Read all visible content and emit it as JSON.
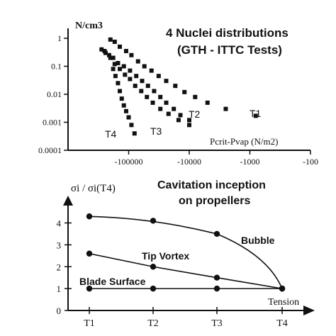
{
  "chart_data": [
    {
      "type": "scatter",
      "title": "4 Nuclei distributions",
      "subtitle": "(GTH - ITTC Tests)",
      "ylabel": "N/cm3",
      "xlabel": "Pcrit-Pvap (N/m2)",
      "x_scale": "log-negative",
      "y_scale": "log",
      "xlim": [
        -1000000,
        -100
      ],
      "ylim": [
        0.0001,
        1
      ],
      "x_ticks": [
        -100000,
        -10000,
        -1000,
        -100
      ],
      "x_tick_labels": [
        "-100000",
        "-10000",
        "-1000",
        "-100"
      ],
      "y_ticks": [
        0.0001,
        0.001,
        0.01,
        0.1,
        1
      ],
      "y_tick_labels": [
        "0.0001",
        "0.001",
        "0.01",
        "0.1",
        "1"
      ],
      "series": [
        {
          "name": "T1",
          "x": [
            -200000,
            -170000,
            -140000,
            -110000,
            -90000,
            -70000,
            -55000,
            -42000,
            -32000,
            -24000,
            -17000,
            -12000,
            -8000,
            -5000,
            -2500,
            -800
          ],
          "y": [
            0.9,
            0.75,
            0.5,
            0.35,
            0.25,
            0.15,
            0.1,
            0.07,
            0.045,
            0.03,
            0.02,
            0.012,
            0.008,
            0.005,
            0.003,
            0.0017
          ]
        },
        {
          "name": "T2",
          "x": [
            -250000,
            -210000,
            -180000,
            -150000,
            -120000,
            -95000,
            -75000,
            -60000,
            -48000,
            -38000,
            -30000,
            -24000,
            -18000,
            -14000,
            -10000
          ],
          "y": [
            0.35,
            0.25,
            0.2,
            0.13,
            0.1,
            0.07,
            0.045,
            0.03,
            0.02,
            0.013,
            0.008,
            0.005,
            0.003,
            0.0018,
            0.0012
          ]
        },
        {
          "name": "T3",
          "x": [
            -280000,
            -240000,
            -200000,
            -170000,
            -140000,
            -115000,
            -95000,
            -78000,
            -62000,
            -50000,
            -40000,
            -30000,
            -22000,
            -15000,
            -10000
          ],
          "y": [
            0.4,
            0.3,
            0.2,
            0.12,
            0.08,
            0.05,
            0.035,
            0.02,
            0.013,
            0.008,
            0.005,
            0.003,
            0.002,
            0.0012,
            0.0008
          ]
        },
        {
          "name": "T4",
          "x": [
            -180000,
            -165000,
            -150000,
            -140000,
            -130000,
            -120000,
            -110000,
            -100000,
            -90000,
            -80000
          ],
          "y": [
            0.08,
            0.045,
            0.025,
            0.013,
            0.007,
            0.004,
            0.0025,
            0.0015,
            0.0008,
            0.0004
          ]
        }
      ],
      "series_labels": [
        "T1",
        "T2",
        "T3",
        "T4"
      ]
    },
    {
      "type": "line",
      "title": "Cavitation inception",
      "subtitle": "on propellers",
      "ylabel_main": "σi / σi(T4)",
      "categories": [
        "T1",
        "T2",
        "T3",
        "T4"
      ],
      "ylim": [
        0,
        4.6
      ],
      "y_ticks": [
        0,
        1,
        2,
        3,
        4
      ],
      "x_end_label": "Tension",
      "series": [
        {
          "name": "Bubble",
          "values": [
            4.3,
            4.1,
            3.5,
            1.0
          ]
        },
        {
          "name": "Tip Vortex",
          "values": [
            2.6,
            2.0,
            1.5,
            1.0
          ]
        },
        {
          "name": "Blade Surface",
          "values": [
            1.0,
            1.0,
            1.0,
            1.0
          ]
        }
      ]
    }
  ]
}
